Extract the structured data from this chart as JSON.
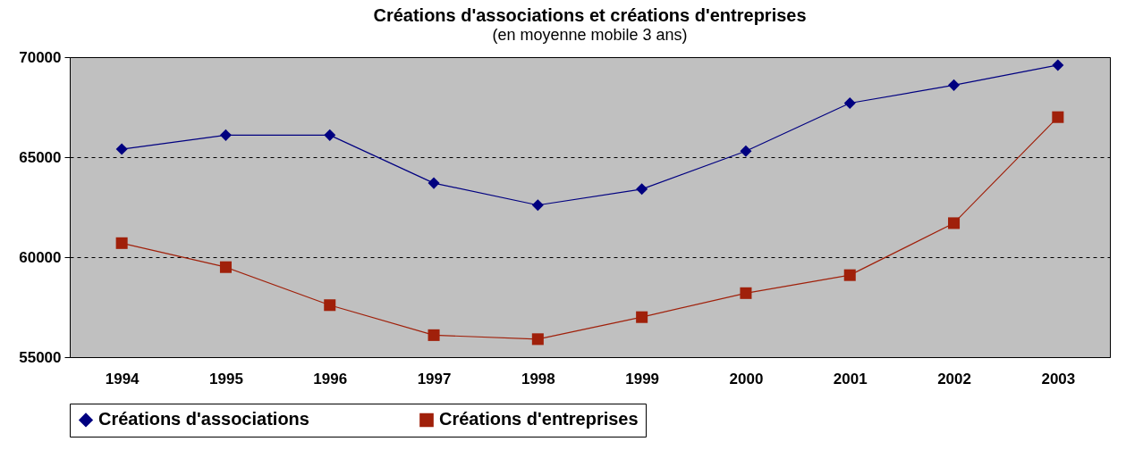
{
  "chart_data": {
    "type": "line",
    "title": "Créations d'associations et créations d'entreprises",
    "subtitle": "(en moyenne mobile 3 ans)",
    "categories": [
      "1994",
      "1995",
      "1996",
      "1997",
      "1998",
      "1999",
      "2000",
      "2001",
      "2002",
      "2003"
    ],
    "series": [
      {
        "name": "Créations d'associations",
        "color": "#000080",
        "marker": "diamond",
        "values": [
          65400,
          66100,
          66100,
          63700,
          62600,
          63400,
          65300,
          67700,
          68600,
          69600
        ]
      },
      {
        "name": "Créations d'entreprises",
        "color": "#a0200a",
        "marker": "square",
        "values": [
          60700,
          59500,
          57600,
          56100,
          55900,
          57000,
          58200,
          59100,
          61700,
          67000
        ]
      }
    ],
    "ylim": [
      55000,
      70000
    ],
    "yticks": [
      55000,
      60000,
      65000,
      70000
    ],
    "grid": "y",
    "legend": "bottom",
    "line_style": "solid"
  }
}
